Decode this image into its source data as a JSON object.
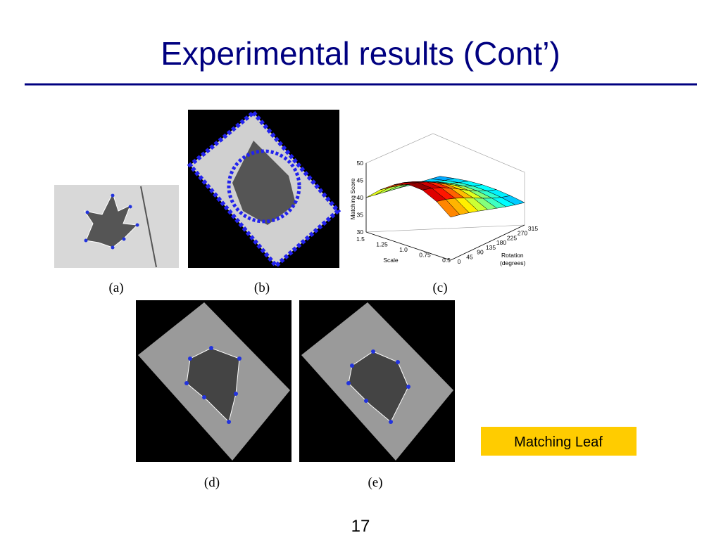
{
  "slide": {
    "title": "Experimental results (Cont’)",
    "figures": {
      "a": {
        "caption": "(a)"
      },
      "b": {
        "caption": "(b)"
      },
      "c": {
        "caption": "(c)",
        "zlabel": "Matching Score",
        "xlabel": "Scale",
        "ylabel": [
          "Rotation",
          "(degrees)"
        ],
        "zticks": [
          "50",
          "45",
          "40",
          "35",
          "30"
        ],
        "xticks": [
          "1.5",
          "1.25",
          "1.0",
          "0.75",
          "0.5"
        ],
        "yticks": [
          "0",
          "45",
          "90",
          "135",
          "180",
          "225",
          "270",
          "315"
        ]
      },
      "d": {
        "caption": "(d)"
      },
      "e": {
        "caption": "(e)"
      }
    },
    "badge": "Matching Leaf",
    "page_number": "17"
  }
}
